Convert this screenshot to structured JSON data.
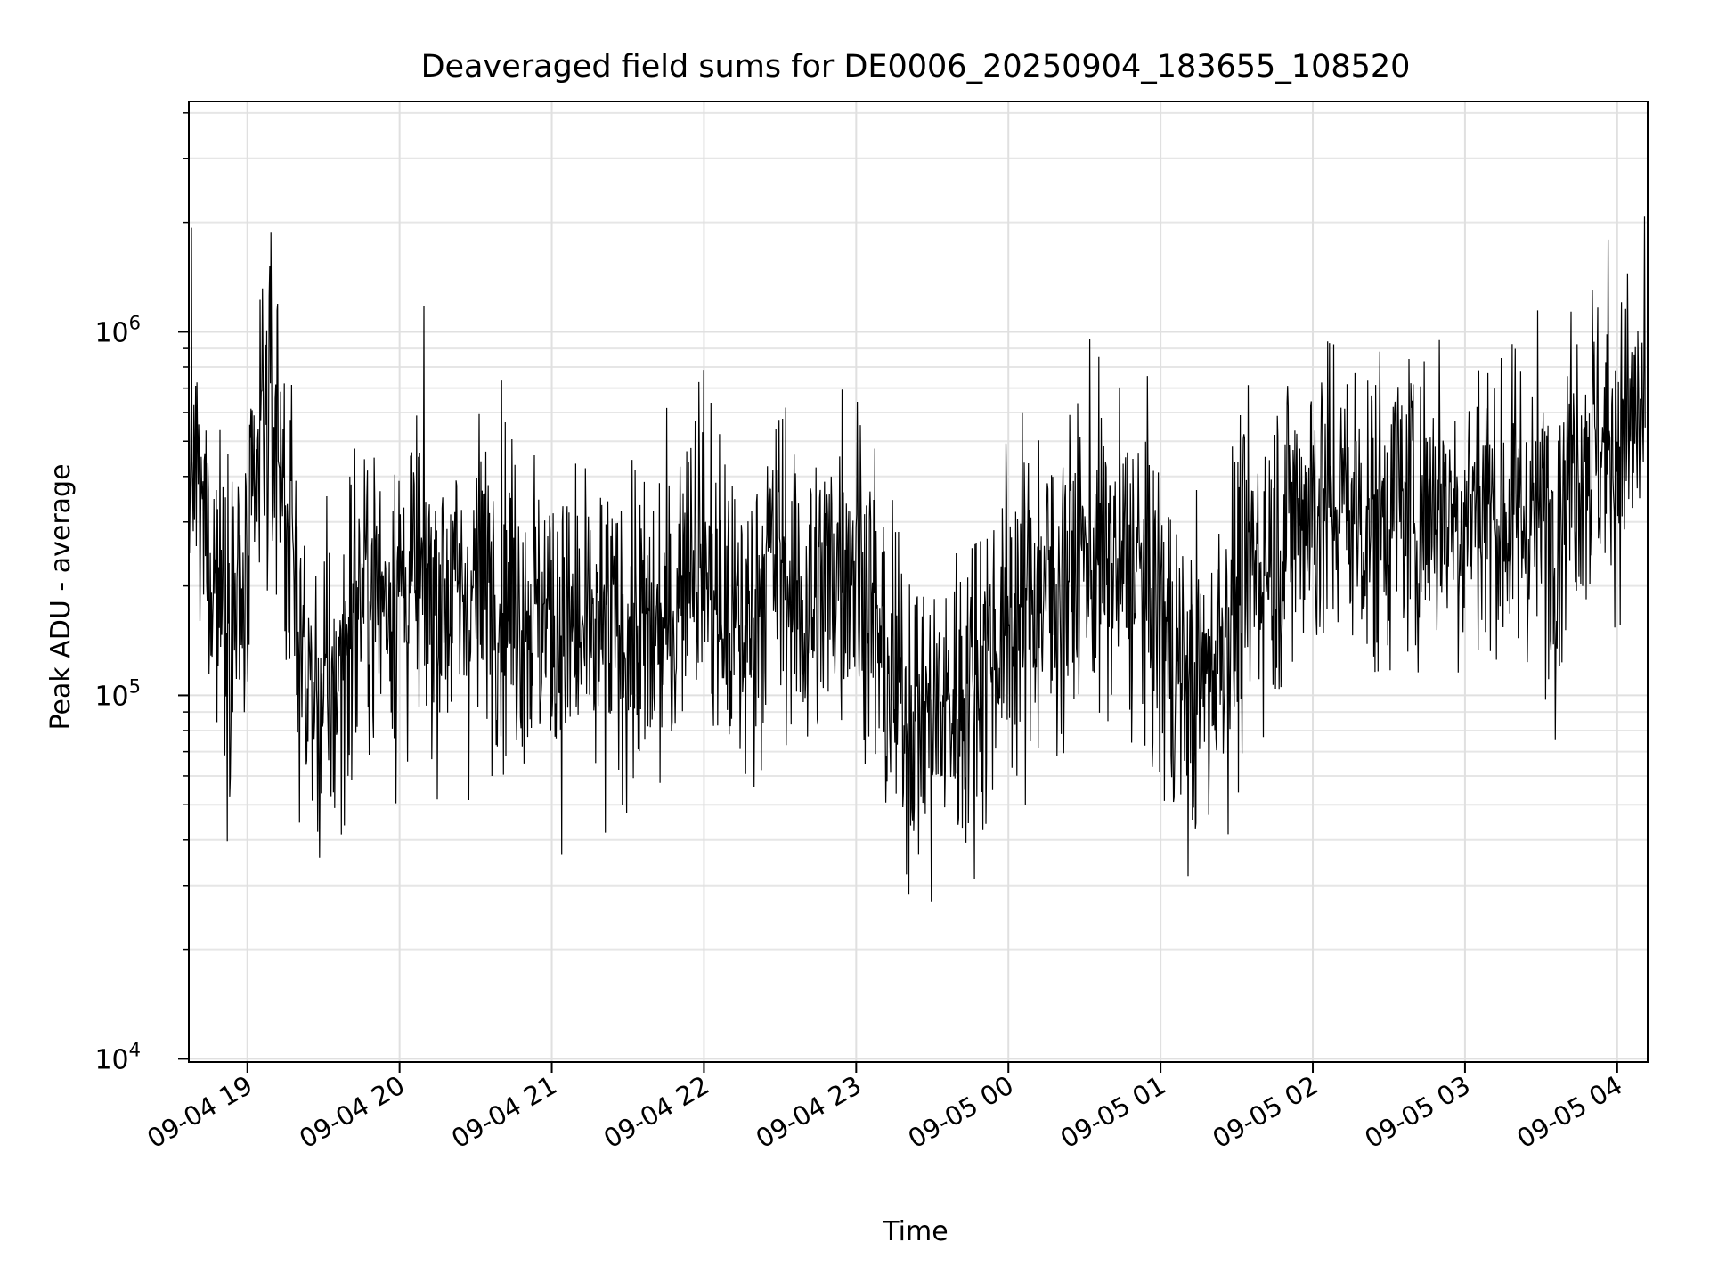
{
  "chart_data": {
    "type": "line",
    "title": "Deaveraged field sums for DE0006_20250904_183655_108520",
    "xlabel": "Time",
    "ylabel": "Peak ADU - average",
    "yscale": "log",
    "ylim": [
      9800,
      4300000
    ],
    "xlim": [
      "2025-09-04 18:36:55",
      "2025-09-05 04:12:00"
    ],
    "xticks": [
      {
        "t": "2025-09-04 19:00",
        "label": "09-04 19"
      },
      {
        "t": "2025-09-04 20:00",
        "label": "09-04 20"
      },
      {
        "t": "2025-09-04 21:00",
        "label": "09-04 21"
      },
      {
        "t": "2025-09-04 22:00",
        "label": "09-04 22"
      },
      {
        "t": "2025-09-04 23:00",
        "label": "09-04 23"
      },
      {
        "t": "2025-09-05 00:00",
        "label": "09-05 00"
      },
      {
        "t": "2025-09-05 01:00",
        "label": "09-05 01"
      },
      {
        "t": "2025-09-05 02:00",
        "label": "09-05 02"
      },
      {
        "t": "2025-09-05 03:00",
        "label": "09-05 03"
      },
      {
        "t": "2025-09-05 04:00",
        "label": "09-05 04"
      }
    ],
    "yticks": [
      {
        "value": 10000,
        "base": "10",
        "exp": "4"
      },
      {
        "value": 100000,
        "base": "10",
        "exp": "5"
      },
      {
        "value": 1000000,
        "base": "10",
        "exp": "6"
      }
    ],
    "grid": "major+minor",
    "series": [
      {
        "color": "#000000",
        "points": [
          [
            "2025-09-04 18:37",
            500000
          ],
          [
            "2025-09-04 18:42",
            300000
          ],
          [
            "2025-09-04 18:48",
            220000
          ],
          [
            "2025-09-04 18:54",
            180000
          ],
          [
            "2025-09-04 19:00",
            170000
          ],
          [
            "2025-09-04 19:06",
            600000
          ],
          [
            "2025-09-04 19:12",
            550000
          ],
          [
            "2025-09-04 19:18",
            220000
          ],
          [
            "2025-09-04 19:24",
            100000
          ],
          [
            "2025-09-04 19:30",
            90000
          ],
          [
            "2025-09-04 19:36",
            110000
          ],
          [
            "2025-09-04 19:42",
            180000
          ],
          [
            "2025-09-04 19:48",
            200000
          ],
          [
            "2025-09-04 19:54",
            190000
          ],
          [
            "2025-09-04 20:00",
            200000
          ],
          [
            "2025-09-04 20:06",
            210000
          ],
          [
            "2025-09-04 20:12",
            190000
          ],
          [
            "2025-09-04 20:18",
            200000
          ],
          [
            "2025-09-04 20:24",
            180000
          ],
          [
            "2025-09-04 20:30",
            200000
          ],
          [
            "2025-09-04 20:36",
            220000
          ],
          [
            "2025-09-04 20:42",
            200000
          ],
          [
            "2025-09-04 20:48",
            180000
          ],
          [
            "2025-09-04 20:54",
            170000
          ],
          [
            "2025-09-04 21:00",
            160000
          ],
          [
            "2025-09-04 21:06",
            150000
          ],
          [
            "2025-09-04 21:12",
            140000
          ],
          [
            "2025-09-04 21:18",
            140000
          ],
          [
            "2025-09-04 21:24",
            145000
          ],
          [
            "2025-09-04 21:30",
            150000
          ],
          [
            "2025-09-04 21:36",
            140000
          ],
          [
            "2025-09-04 21:42",
            145000
          ],
          [
            "2025-09-04 21:48",
            160000
          ],
          [
            "2025-09-04 21:54",
            300000
          ],
          [
            "2025-09-04 22:00",
            250000
          ],
          [
            "2025-09-04 22:06",
            170000
          ],
          [
            "2025-09-04 22:12",
            150000
          ],
          [
            "2025-09-04 22:18",
            150000
          ],
          [
            "2025-09-04 22:24",
            230000
          ],
          [
            "2025-09-04 22:30",
            250000
          ],
          [
            "2025-09-04 22:36",
            180000
          ],
          [
            "2025-09-04 22:42",
            170000
          ],
          [
            "2025-09-04 22:48",
            200000
          ],
          [
            "2025-09-04 22:54",
            260000
          ],
          [
            "2025-09-04 23:00",
            250000
          ],
          [
            "2025-09-04 23:06",
            180000
          ],
          [
            "2025-09-04 23:12",
            110000
          ],
          [
            "2025-09-04 23:18",
            95000
          ],
          [
            "2025-09-04 23:24",
            90000
          ],
          [
            "2025-09-04 23:30",
            85000
          ],
          [
            "2025-09-04 23:36",
            90000
          ],
          [
            "2025-09-04 23:42",
            100000
          ],
          [
            "2025-09-04 23:48",
            120000
          ],
          [
            "2025-09-04 23:54",
            140000
          ],
          [
            "2025-09-05 00:00",
            160000
          ],
          [
            "2025-09-05 00:06",
            180000
          ],
          [
            "2025-09-05 00:12",
            200000
          ],
          [
            "2025-09-05 00:18",
            190000
          ],
          [
            "2025-09-05 00:24",
            220000
          ],
          [
            "2025-09-05 00:30",
            250000
          ],
          [
            "2025-09-05 00:36",
            240000
          ],
          [
            "2025-09-05 00:42",
            220000
          ],
          [
            "2025-09-05 00:48",
            230000
          ],
          [
            "2025-09-05 00:54",
            200000
          ],
          [
            "2025-09-05 01:00",
            160000
          ],
          [
            "2025-09-05 01:06",
            120000
          ],
          [
            "2025-09-05 01:12",
            100000
          ],
          [
            "2025-09-05 01:18",
            110000
          ],
          [
            "2025-09-05 01:24",
            150000
          ],
          [
            "2025-09-05 01:30",
            180000
          ],
          [
            "2025-09-05 01:36",
            220000
          ],
          [
            "2025-09-05 01:42",
            250000
          ],
          [
            "2025-09-05 01:48",
            280000
          ],
          [
            "2025-09-05 01:54",
            320000
          ],
          [
            "2025-09-05 02:00",
            350000
          ],
          [
            "2025-09-05 02:06",
            330000
          ],
          [
            "2025-09-05 02:12",
            350000
          ],
          [
            "2025-09-05 02:18",
            320000
          ],
          [
            "2025-09-05 02:24",
            300000
          ],
          [
            "2025-09-05 02:30",
            330000
          ],
          [
            "2025-09-05 02:36",
            340000
          ],
          [
            "2025-09-05 02:42",
            320000
          ],
          [
            "2025-09-05 02:48",
            360000
          ],
          [
            "2025-09-05 02:54",
            330000
          ],
          [
            "2025-09-05 03:00",
            320000
          ],
          [
            "2025-09-05 03:06",
            350000
          ],
          [
            "2025-09-05 03:12",
            330000
          ],
          [
            "2025-09-05 03:18",
            300000
          ],
          [
            "2025-09-05 03:24",
            320000
          ],
          [
            "2025-09-05 03:30",
            310000
          ],
          [
            "2025-09-05 03:36",
            300000
          ],
          [
            "2025-09-05 03:42",
            450000
          ],
          [
            "2025-09-05 03:48",
            500000
          ],
          [
            "2025-09-05 03:54",
            480000
          ],
          [
            "2025-09-05 04:00",
            520000
          ],
          [
            "2025-09-05 04:06",
            550000
          ],
          [
            "2025-09-05 04:11",
            580000
          ]
        ]
      }
    ]
  }
}
